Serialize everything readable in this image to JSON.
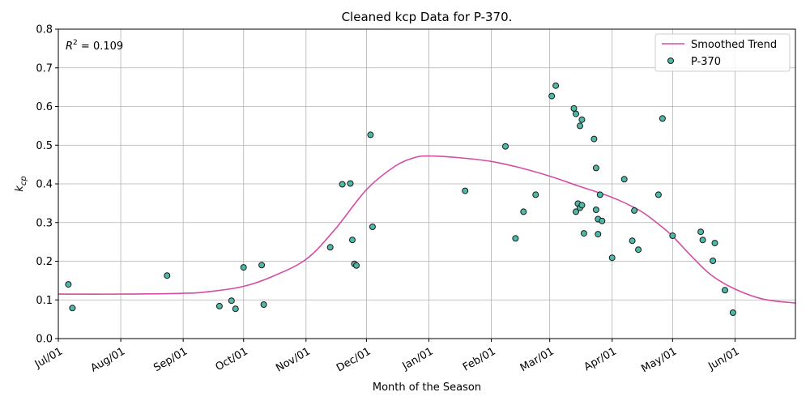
{
  "chart_data": {
    "type": "scatter",
    "title": "Cleaned kcp Data for P-370.",
    "xlabel": "Month of the Season",
    "ylabel_base": "k",
    "ylabel_sub": "cp",
    "annotation": {
      "base": "R",
      "sup": "2",
      "rest": " = 0.109"
    },
    "ylim": [
      0,
      0.8
    ],
    "yticks": [
      "0.0",
      "0.1",
      "0.2",
      "0.3",
      "0.4",
      "0.5",
      "0.6",
      "0.7",
      "0.8"
    ],
    "xlim": [
      "2019-07-01",
      "2020-07-01"
    ],
    "xticks": [
      {
        "date": "2019-07-01",
        "label": "Jul/01"
      },
      {
        "date": "2019-08-01",
        "label": "Aug/01"
      },
      {
        "date": "2019-09-01",
        "label": "Sep/01"
      },
      {
        "date": "2019-10-01",
        "label": "Oct/01"
      },
      {
        "date": "2019-11-01",
        "label": "Nov/01"
      },
      {
        "date": "2019-12-01",
        "label": "Dec/01"
      },
      {
        "date": "2020-01-01",
        "label": "Jan/01"
      },
      {
        "date": "2020-02-01",
        "label": "Feb/01"
      },
      {
        "date": "2020-03-01",
        "label": "Mar/01"
      },
      {
        "date": "2020-04-01",
        "label": "Apr/01"
      },
      {
        "date": "2020-05-01",
        "label": "May/01"
      },
      {
        "date": "2020-06-01",
        "label": "Jun/01"
      }
    ],
    "grid": true,
    "legend_position": "top-right",
    "colors": {
      "trend": "#d44da4",
      "point_fill": "#4fb9a9",
      "point_edge": "#1a1a1a",
      "grid": "#b0b0b0"
    },
    "series": [
      {
        "name": "Smoothed Trend",
        "kind": "line",
        "points": [
          [
            "2019-07-01",
            0.115
          ],
          [
            "2019-08-01",
            0.115
          ],
          [
            "2019-09-01",
            0.117
          ],
          [
            "2019-09-15",
            0.122
          ],
          [
            "2019-10-01",
            0.135
          ],
          [
            "2019-10-15",
            0.16
          ],
          [
            "2019-11-01",
            0.205
          ],
          [
            "2019-11-15",
            0.28
          ],
          [
            "2019-12-01",
            0.385
          ],
          [
            "2019-12-15",
            0.445
          ],
          [
            "2019-12-25",
            0.468
          ],
          [
            "2020-01-01",
            0.472
          ],
          [
            "2020-01-15",
            0.468
          ],
          [
            "2020-02-01",
            0.458
          ],
          [
            "2020-02-15",
            0.442
          ],
          [
            "2020-03-01",
            0.42
          ],
          [
            "2020-03-15",
            0.395
          ],
          [
            "2020-04-01",
            0.365
          ],
          [
            "2020-04-15",
            0.33
          ],
          [
            "2020-04-25",
            0.292
          ],
          [
            "2020-05-01",
            0.265
          ],
          [
            "2020-05-10",
            0.215
          ],
          [
            "2020-05-20",
            0.165
          ],
          [
            "2020-06-01",
            0.128
          ],
          [
            "2020-06-15",
            0.102
          ],
          [
            "2020-07-01",
            0.092
          ]
        ]
      },
      {
        "name": "P-370",
        "kind": "scatter",
        "points": [
          [
            "2019-07-06",
            0.14
          ],
          [
            "2019-07-08",
            0.079
          ],
          [
            "2019-08-24",
            0.163
          ],
          [
            "2019-09-19",
            0.084
          ],
          [
            "2019-09-25",
            0.098
          ],
          [
            "2019-09-27",
            0.077
          ],
          [
            "2019-10-01",
            0.184
          ],
          [
            "2019-10-10",
            0.19
          ],
          [
            "2019-10-11",
            0.088
          ],
          [
            "2019-11-13",
            0.236
          ],
          [
            "2019-11-19",
            0.399
          ],
          [
            "2019-11-23",
            0.401
          ],
          [
            "2019-11-24",
            0.255
          ],
          [
            "2019-11-25",
            0.193
          ],
          [
            "2019-11-26",
            0.189
          ],
          [
            "2019-12-03",
            0.527
          ],
          [
            "2019-12-04",
            0.289
          ],
          [
            "2020-01-19",
            0.382
          ],
          [
            "2020-02-08",
            0.497
          ],
          [
            "2020-02-13",
            0.259
          ],
          [
            "2020-02-17",
            0.328
          ],
          [
            "2020-02-23",
            0.372
          ],
          [
            "2020-03-02",
            0.627
          ],
          [
            "2020-03-04",
            0.654
          ],
          [
            "2020-03-13",
            0.595
          ],
          [
            "2020-03-14",
            0.581
          ],
          [
            "2020-03-14",
            0.328
          ],
          [
            "2020-03-15",
            0.349
          ],
          [
            "2020-03-16",
            0.338
          ],
          [
            "2020-03-16",
            0.55
          ],
          [
            "2020-03-17",
            0.345
          ],
          [
            "2020-03-17",
            0.566
          ],
          [
            "2020-03-18",
            0.272
          ],
          [
            "2020-03-23",
            0.516
          ],
          [
            "2020-03-24",
            0.441
          ],
          [
            "2020-03-24",
            0.333
          ],
          [
            "2020-03-25",
            0.309
          ],
          [
            "2020-03-25",
            0.27
          ],
          [
            "2020-03-26",
            0.372
          ],
          [
            "2020-03-27",
            0.304
          ],
          [
            "2020-04-01",
            0.209
          ],
          [
            "2020-04-07",
            0.412
          ],
          [
            "2020-04-11",
            0.253
          ],
          [
            "2020-04-12",
            0.331
          ],
          [
            "2020-04-14",
            0.23
          ],
          [
            "2020-04-24",
            0.372
          ],
          [
            "2020-04-26",
            0.569
          ],
          [
            "2020-05-01",
            0.266
          ],
          [
            "2020-05-15",
            0.276
          ],
          [
            "2020-05-16",
            0.255
          ],
          [
            "2020-05-21",
            0.201
          ],
          [
            "2020-05-22",
            0.247
          ],
          [
            "2020-05-27",
            0.125
          ],
          [
            "2020-05-31",
            0.067
          ]
        ]
      }
    ]
  }
}
